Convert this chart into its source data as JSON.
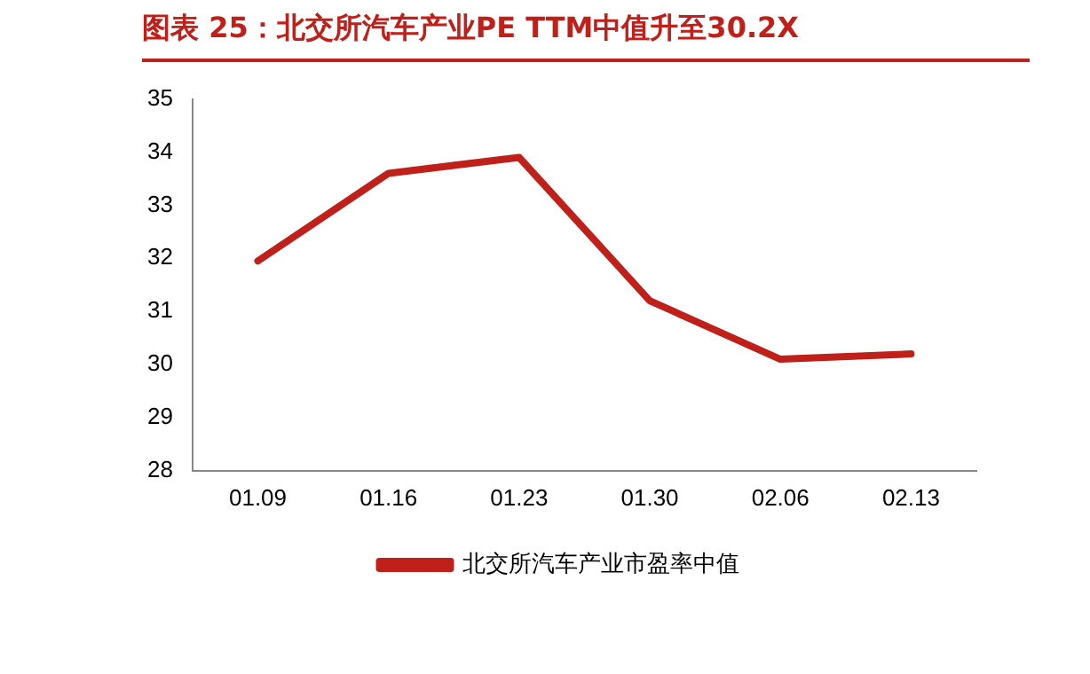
{
  "chart_data": {
    "type": "line",
    "title": "图表 25：北交所汽车产业PE TTM中值升至30.2X",
    "categories": [
      "01.09",
      "01.16",
      "01.23",
      "01.30",
      "02.06",
      "02.13"
    ],
    "series": [
      {
        "name": "北交所汽车产业市盈率中值",
        "color": "#c0201a",
        "values": [
          31.95,
          33.6,
          33.9,
          31.2,
          30.1,
          30.2
        ]
      }
    ],
    "ylim": [
      28,
      35
    ],
    "yticks": [
      28,
      29,
      30,
      31,
      32,
      33,
      34,
      35
    ],
    "grid": false,
    "legend": "bottom",
    "marker": "none",
    "line_style": "solid"
  }
}
